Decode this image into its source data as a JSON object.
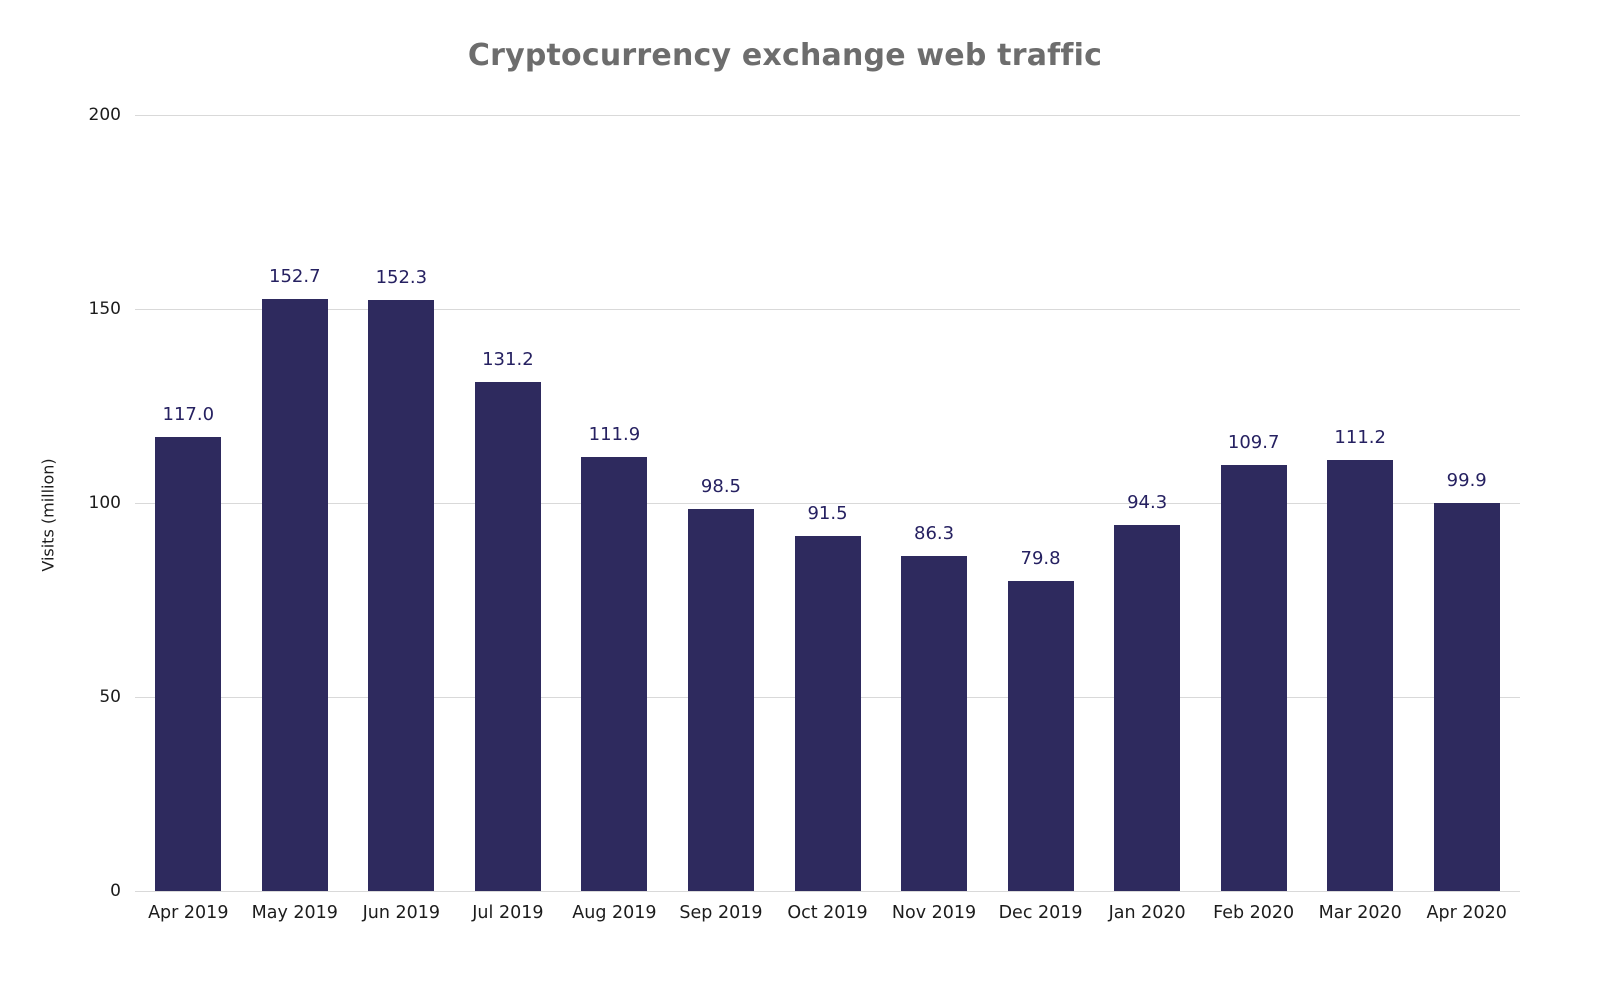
{
  "chart_data": {
    "type": "bar",
    "title": "Cryptocurrency exchange web traffic",
    "xlabel": "",
    "ylabel": "Visits (million)",
    "categories": [
      "Apr 2019",
      "May 2019",
      "Jun 2019",
      "Jul 2019",
      "Aug 2019",
      "Sep 2019",
      "Oct 2019",
      "Nov 2019",
      "Dec 2019",
      "Jan 2020",
      "Feb 2020",
      "Mar 2020",
      "Apr 2020"
    ],
    "values": [
      117.0,
      152.7,
      152.3,
      131.2,
      111.9,
      98.5,
      91.5,
      86.3,
      79.8,
      94.3,
      109.7,
      111.2,
      99.9
    ],
    "value_labels": [
      "117.0",
      "152.7",
      "152.3",
      "131.2",
      "111.9",
      "98.5",
      "91.5",
      "86.3",
      "79.8",
      "94.3",
      "109.7",
      "111.2",
      "99.9"
    ],
    "ylim": [
      0,
      200
    ],
    "yticks": [
      0,
      50,
      100,
      150,
      200
    ],
    "grid": "horizontal",
    "legend": "none",
    "colors": {
      "bar": "#2e2a5e",
      "value_label": "#262161",
      "grid_line": "#d9d9d9",
      "title": "#6d6d6d",
      "axis_text": "#1c1c1c"
    }
  }
}
